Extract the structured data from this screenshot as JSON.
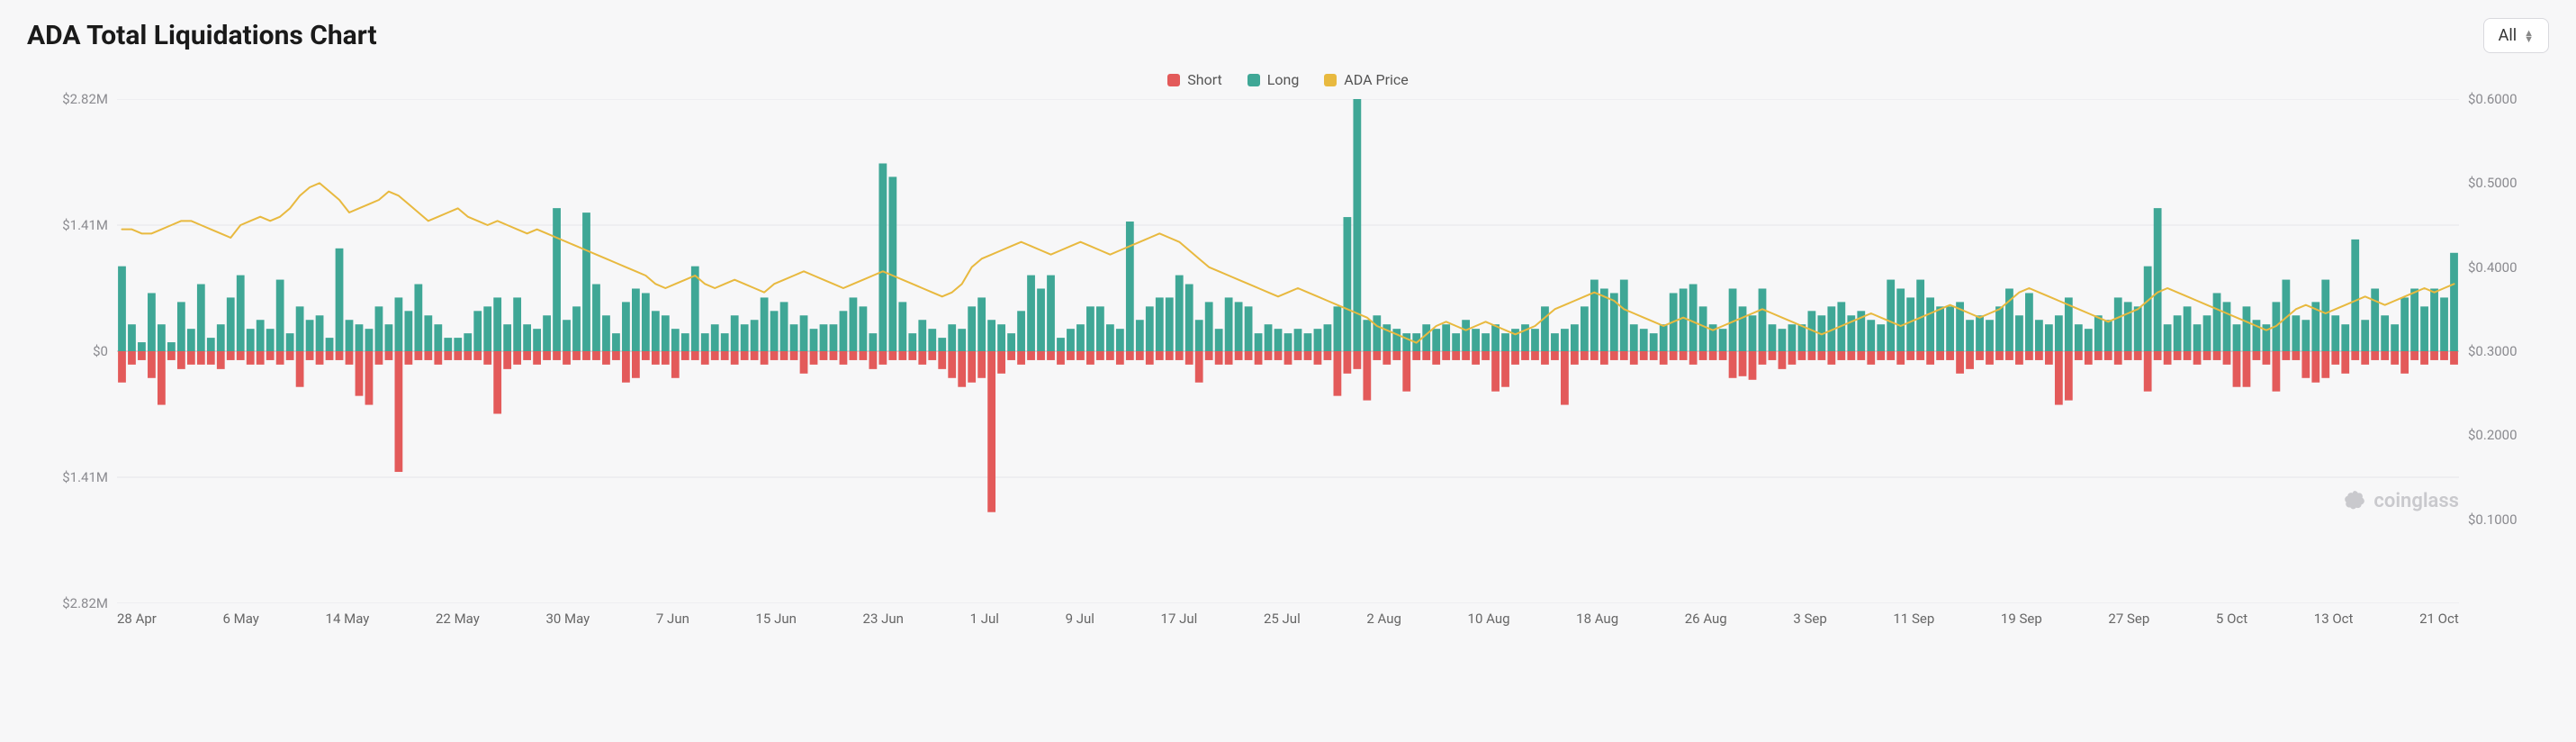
{
  "chart": {
    "title": "ADA Total Liquidations Chart",
    "range_label": "All",
    "watermark": "coinglass",
    "legend": {
      "short": "Short",
      "long": "Long",
      "price": "ADA Price"
    },
    "colors": {
      "short": "#e35a5a",
      "long": "#3fa796",
      "price": "#e8b93f",
      "grid": "#e6e6ea",
      "zero_line": "#cfcfd4",
      "background": "#f7f7f8",
      "axis_text": "#8a8a8f"
    },
    "typography": {
      "title_fontsize": 30,
      "title_weight": 700,
      "axis_fontsize": 15,
      "legend_fontsize": 16
    },
    "layout": {
      "aspect_ratio": 3.47,
      "bar_gap_ratio": 0.2,
      "line_width": 2
    },
    "y_left": {
      "label_format": "dollar_m",
      "ticks": [
        2.82,
        1.41,
        0,
        -1.41,
        -2.82
      ],
      "tick_labels": [
        "$2.82M",
        "$1.41M",
        "$0",
        "$1.41M",
        "$2.82M"
      ],
      "min": -2.82,
      "max": 2.82
    },
    "y_right": {
      "ticks": [
        0.1,
        0.2,
        0.3,
        0.4,
        0.5,
        0.6
      ],
      "tick_labels": [
        "$0.1000",
        "$0.2000",
        "$0.3000",
        "$0.4000",
        "$0.5000",
        "$0.6000"
      ],
      "min": 0.0,
      "max": 0.6
    },
    "x_labels": [
      "28 Apr",
      "6 May",
      "14 May",
      "22 May",
      "30 May",
      "7 Jun",
      "15 Jun",
      "23 Jun",
      "1 Jul",
      "9 Jul",
      "17 Jul",
      "25 Jul",
      "2 Aug",
      "10 Aug",
      "18 Aug",
      "26 Aug",
      "3 Sep",
      "11 Sep",
      "19 Sep",
      "27 Sep",
      "5 Oct",
      "13 Oct",
      "21 Oct"
    ],
    "series": {
      "long": [
        0.95,
        0.3,
        0.1,
        0.65,
        0.3,
        0.1,
        0.55,
        0.25,
        0.75,
        0.15,
        0.3,
        0.6,
        0.85,
        0.25,
        0.35,
        0.25,
        0.8,
        0.2,
        0.5,
        0.35,
        0.4,
        0.15,
        1.15,
        0.35,
        0.3,
        0.25,
        0.5,
        0.3,
        0.6,
        0.45,
        0.75,
        0.4,
        0.3,
        0.15,
        0.15,
        0.2,
        0.45,
        0.5,
        0.6,
        0.3,
        0.6,
        0.3,
        0.25,
        0.4,
        1.6,
        0.35,
        0.5,
        1.55,
        0.75,
        0.4,
        0.2,
        0.55,
        0.7,
        0.65,
        0.45,
        0.4,
        0.25,
        0.2,
        0.95,
        0.2,
        0.3,
        0.2,
        0.4,
        0.3,
        0.35,
        0.6,
        0.45,
        0.55,
        0.3,
        0.4,
        0.25,
        0.3,
        0.3,
        0.45,
        0.6,
        0.5,
        0.2,
        2.1,
        1.95,
        0.55,
        0.2,
        0.35,
        0.25,
        0.15,
        0.3,
        0.25,
        0.5,
        0.6,
        0.35,
        0.3,
        0.2,
        0.45,
        0.85,
        0.7,
        0.85,
        0.15,
        0.25,
        0.3,
        0.5,
        0.5,
        0.3,
        0.25,
        1.45,
        0.35,
        0.5,
        0.6,
        0.6,
        0.85,
        0.75,
        0.35,
        0.55,
        0.25,
        0.6,
        0.55,
        0.5,
        0.2,
        0.3,
        0.25,
        0.2,
        0.25,
        0.2,
        0.25,
        0.3,
        0.5,
        1.5,
        2.82,
        0.35,
        0.4,
        0.3,
        0.25,
        0.2,
        0.2,
        0.3,
        0.25,
        0.3,
        0.2,
        0.35,
        0.25,
        0.2,
        0.3,
        0.2,
        0.25,
        0.3,
        0.25,
        0.5,
        0.2,
        0.25,
        0.3,
        0.5,
        0.8,
        0.7,
        0.65,
        0.8,
        0.3,
        0.25,
        0.2,
        0.3,
        0.65,
        0.7,
        0.75,
        0.5,
        0.3,
        0.25,
        0.7,
        0.5,
        0.4,
        0.7,
        0.3,
        0.25,
        0.3,
        0.3,
        0.45,
        0.4,
        0.5,
        0.55,
        0.4,
        0.45,
        0.35,
        0.3,
        0.8,
        0.7,
        0.6,
        0.8,
        0.6,
        0.5,
        0.5,
        0.55,
        0.35,
        0.4,
        0.35,
        0.5,
        0.7,
        0.4,
        0.65,
        0.35,
        0.3,
        0.4,
        0.6,
        0.3,
        0.25,
        0.4,
        0.35,
        0.6,
        0.55,
        0.5,
        0.95,
        1.6,
        0.3,
        0.4,
        0.5,
        0.3,
        0.4,
        0.65,
        0.55,
        0.3,
        0.5,
        0.35,
        0.3,
        0.55,
        0.8,
        0.4,
        0.35,
        0.55,
        0.8,
        0.4,
        0.3,
        1.25,
        0.35,
        0.7,
        0.4,
        0.3,
        0.6,
        0.7,
        0.5,
        0.7,
        0.6,
        1.1
      ],
      "short": [
        0.35,
        0.15,
        0.1,
        0.3,
        0.6,
        0.1,
        0.2,
        0.15,
        0.15,
        0.15,
        0.2,
        0.1,
        0.1,
        0.15,
        0.15,
        0.1,
        0.15,
        0.1,
        0.4,
        0.1,
        0.15,
        0.1,
        0.1,
        0.15,
        0.5,
        0.6,
        0.15,
        0.1,
        1.35,
        0.15,
        0.1,
        0.1,
        0.15,
        0.1,
        0.1,
        0.1,
        0.1,
        0.15,
        0.7,
        0.2,
        0.15,
        0.1,
        0.15,
        0.1,
        0.1,
        0.15,
        0.1,
        0.1,
        0.1,
        0.15,
        0.1,
        0.35,
        0.3,
        0.1,
        0.15,
        0.15,
        0.3,
        0.1,
        0.1,
        0.15,
        0.1,
        0.1,
        0.15,
        0.1,
        0.1,
        0.15,
        0.1,
        0.1,
        0.1,
        0.25,
        0.15,
        0.1,
        0.1,
        0.15,
        0.1,
        0.1,
        0.2,
        0.15,
        0.1,
        0.1,
        0.1,
        0.15,
        0.1,
        0.2,
        0.3,
        0.4,
        0.35,
        0.3,
        1.8,
        0.25,
        0.1,
        0.15,
        0.1,
        0.1,
        0.1,
        0.15,
        0.1,
        0.1,
        0.15,
        0.1,
        0.1,
        0.15,
        0.1,
        0.1,
        0.15,
        0.1,
        0.1,
        0.1,
        0.15,
        0.35,
        0.1,
        0.15,
        0.15,
        0.1,
        0.1,
        0.15,
        0.1,
        0.1,
        0.15,
        0.1,
        0.1,
        0.15,
        0.1,
        0.5,
        0.25,
        0.2,
        0.55,
        0.1,
        0.15,
        0.1,
        0.45,
        0.1,
        0.1,
        0.15,
        0.1,
        0.1,
        0.1,
        0.15,
        0.1,
        0.45,
        0.4,
        0.15,
        0.1,
        0.1,
        0.15,
        0.1,
        0.6,
        0.15,
        0.1,
        0.1,
        0.15,
        0.1,
        0.1,
        0.15,
        0.1,
        0.1,
        0.15,
        0.1,
        0.1,
        0.15,
        0.1,
        0.1,
        0.1,
        0.3,
        0.28,
        0.32,
        0.15,
        0.1,
        0.2,
        0.15,
        0.1,
        0.1,
        0.1,
        0.15,
        0.1,
        0.1,
        0.1,
        0.15,
        0.1,
        0.1,
        0.15,
        0.1,
        0.1,
        0.15,
        0.1,
        0.1,
        0.25,
        0.2,
        0.1,
        0.15,
        0.1,
        0.1,
        0.15,
        0.1,
        0.1,
        0.15,
        0.6,
        0.55,
        0.1,
        0.15,
        0.1,
        0.1,
        0.15,
        0.1,
        0.1,
        0.45,
        0.1,
        0.15,
        0.1,
        0.1,
        0.15,
        0.1,
        0.1,
        0.15,
        0.4,
        0.4,
        0.1,
        0.15,
        0.45,
        0.1,
        0.1,
        0.3,
        0.35,
        0.3,
        0.15,
        0.25,
        0.1,
        0.15,
        0.1,
        0.1,
        0.15,
        0.25,
        0.1,
        0.15,
        0.1,
        0.1,
        0.15
      ],
      "price": [
        0.445,
        0.445,
        0.44,
        0.44,
        0.445,
        0.45,
        0.455,
        0.455,
        0.45,
        0.445,
        0.44,
        0.435,
        0.45,
        0.455,
        0.46,
        0.455,
        0.46,
        0.47,
        0.485,
        0.495,
        0.5,
        0.49,
        0.48,
        0.465,
        0.47,
        0.475,
        0.48,
        0.49,
        0.485,
        0.475,
        0.465,
        0.455,
        0.46,
        0.465,
        0.47,
        0.46,
        0.455,
        0.45,
        0.455,
        0.45,
        0.445,
        0.44,
        0.445,
        0.44,
        0.435,
        0.43,
        0.425,
        0.42,
        0.415,
        0.41,
        0.405,
        0.4,
        0.395,
        0.39,
        0.38,
        0.375,
        0.38,
        0.385,
        0.39,
        0.38,
        0.375,
        0.38,
        0.385,
        0.38,
        0.375,
        0.37,
        0.38,
        0.385,
        0.39,
        0.395,
        0.39,
        0.385,
        0.38,
        0.375,
        0.38,
        0.385,
        0.39,
        0.395,
        0.39,
        0.385,
        0.38,
        0.375,
        0.37,
        0.365,
        0.37,
        0.38,
        0.4,
        0.41,
        0.415,
        0.42,
        0.425,
        0.43,
        0.425,
        0.42,
        0.415,
        0.42,
        0.425,
        0.43,
        0.425,
        0.42,
        0.415,
        0.42,
        0.425,
        0.43,
        0.435,
        0.44,
        0.435,
        0.43,
        0.42,
        0.41,
        0.4,
        0.395,
        0.39,
        0.385,
        0.38,
        0.375,
        0.37,
        0.365,
        0.37,
        0.375,
        0.37,
        0.365,
        0.36,
        0.355,
        0.35,
        0.345,
        0.34,
        0.33,
        0.325,
        0.32,
        0.315,
        0.31,
        0.32,
        0.33,
        0.335,
        0.33,
        0.325,
        0.33,
        0.335,
        0.33,
        0.325,
        0.32,
        0.325,
        0.33,
        0.34,
        0.35,
        0.355,
        0.36,
        0.365,
        0.37,
        0.365,
        0.36,
        0.35,
        0.345,
        0.34,
        0.335,
        0.33,
        0.335,
        0.34,
        0.335,
        0.33,
        0.325,
        0.33,
        0.335,
        0.34,
        0.345,
        0.35,
        0.345,
        0.34,
        0.335,
        0.33,
        0.325,
        0.32,
        0.325,
        0.33,
        0.335,
        0.34,
        0.345,
        0.34,
        0.335,
        0.33,
        0.335,
        0.34,
        0.345,
        0.35,
        0.355,
        0.35,
        0.345,
        0.34,
        0.345,
        0.35,
        0.36,
        0.37,
        0.375,
        0.37,
        0.365,
        0.36,
        0.355,
        0.35,
        0.345,
        0.34,
        0.335,
        0.34,
        0.345,
        0.35,
        0.36,
        0.37,
        0.375,
        0.37,
        0.365,
        0.36,
        0.355,
        0.35,
        0.345,
        0.34,
        0.335,
        0.33,
        0.325,
        0.33,
        0.34,
        0.35,
        0.355,
        0.35,
        0.345,
        0.35,
        0.355,
        0.36,
        0.365,
        0.36,
        0.355,
        0.36,
        0.365,
        0.37,
        0.375,
        0.37,
        0.375,
        0.38
      ]
    }
  }
}
